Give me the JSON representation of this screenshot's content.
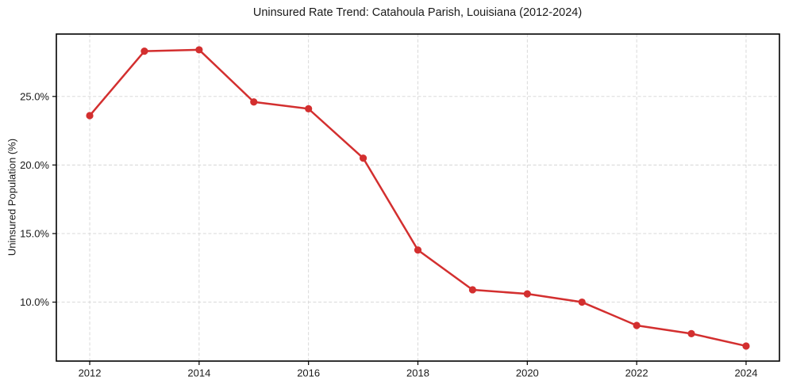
{
  "chart_data": {
    "type": "line",
    "title": "Uninsured Rate Trend: Catahoula Parish, Louisiana (2012-2024)",
    "xlabel": "",
    "ylabel": "Uninsured Population (%)",
    "x": [
      2012,
      2013,
      2014,
      2015,
      2016,
      2017,
      2018,
      2019,
      2020,
      2021,
      2022,
      2023,
      2024
    ],
    "series": [
      {
        "name": "Uninsured rate",
        "values": [
          23.6,
          28.3,
          28.4,
          24.6,
          24.1,
          20.5,
          13.8,
          10.9,
          10.6,
          10.0,
          8.3,
          7.7,
          6.8
        ]
      }
    ],
    "x_ticks": [
      2012,
      2014,
      2016,
      2018,
      2020,
      2022,
      2024
    ],
    "x_tick_labels": [
      "2012",
      "2014",
      "2016",
      "2018",
      "2020",
      "2022",
      "2024"
    ],
    "y_ticks": [
      10,
      15,
      20,
      25
    ],
    "y_tick_labels": [
      "10.0%",
      "15.0%",
      "20.0%",
      "25.0%"
    ],
    "xlim": [
      2011.39,
      2024.61
    ],
    "ylim": [
      5.7,
      29.55
    ],
    "grid": true,
    "grid_style": "dashed",
    "legend": "none",
    "line_color": "#d32f2f",
    "marker": "circle"
  }
}
